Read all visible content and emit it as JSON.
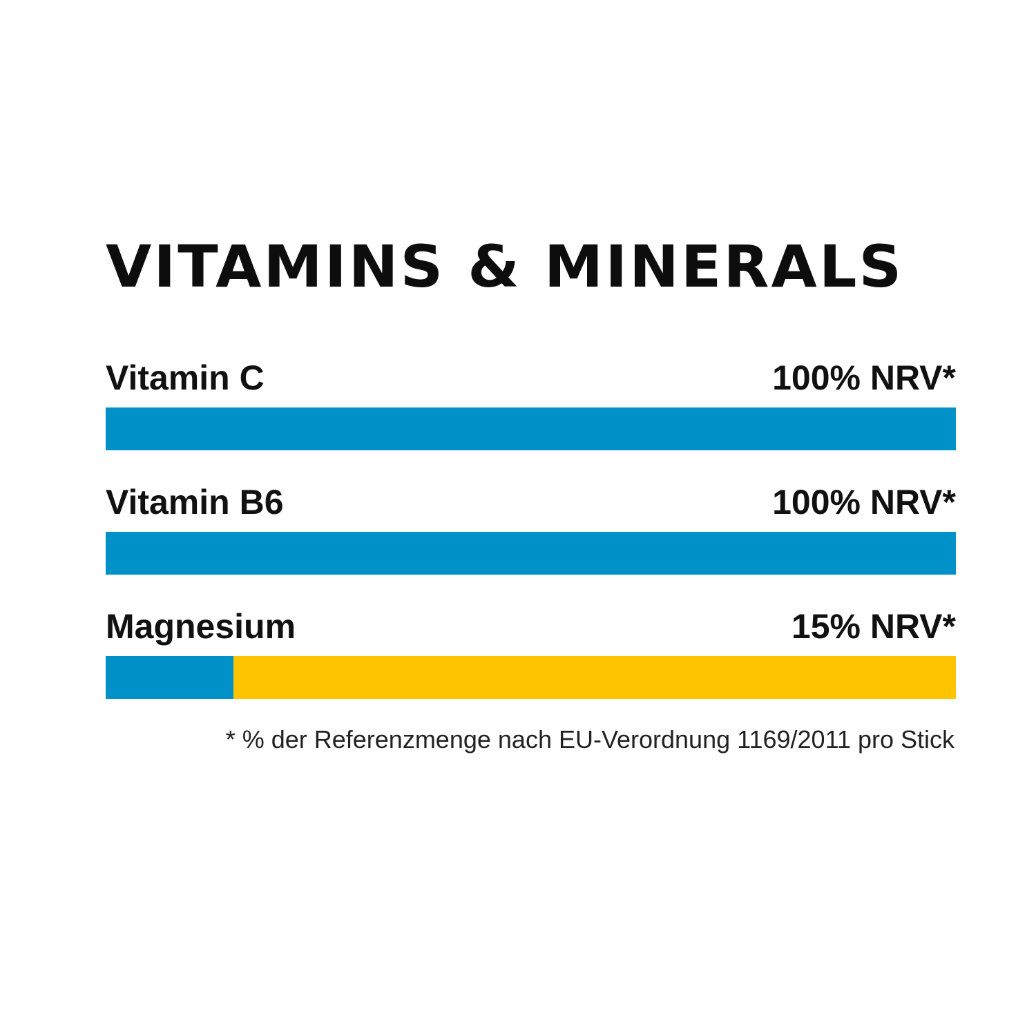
{
  "title": "VITAMINS & MINERALS",
  "colors": {
    "fill": "#0091c8",
    "remainder": "#ffc400",
    "text": "#111111",
    "background": "#ffffff"
  },
  "chart_data": {
    "type": "bar",
    "orientation": "horizontal",
    "title": "VITAMINS & MINERALS",
    "categories": [
      "Vitamin C",
      "Vitamin B6",
      "Magnesium"
    ],
    "values": [
      100,
      100,
      15
    ],
    "value_labels": [
      "100% NRV*",
      "100% NRV*",
      "15% NRV*"
    ],
    "xlim": [
      0,
      100
    ],
    "grid": false,
    "footnote": "* % der Referenzmenge nach EU-Verordnung 1169/2011 pro Stick"
  }
}
